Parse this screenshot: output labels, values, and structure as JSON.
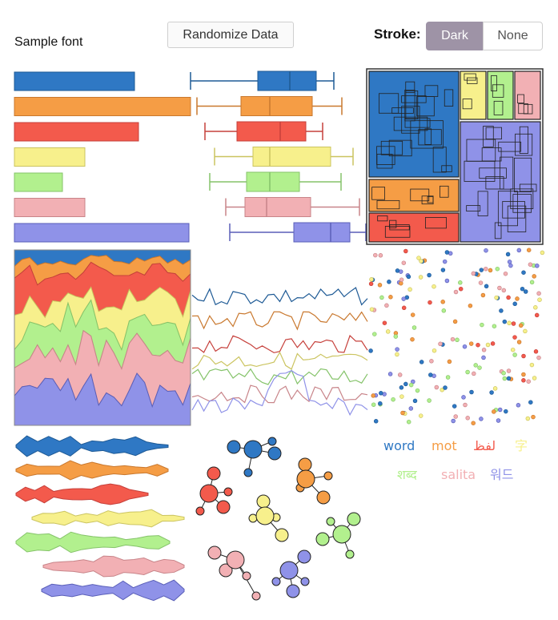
{
  "sample_font_label": "Sample font",
  "randomize_button_label": "Randomize Data",
  "stroke": {
    "label": "Stroke:",
    "options": [
      "Dark",
      "None"
    ],
    "selected": "Dark"
  },
  "palette": [
    "#2f78c4",
    "#f59d45",
    "#f35a4c",
    "#f7f08c",
    "#b2f08e",
    "#f2b0b4",
    "#8f92e8"
  ],
  "stroke_colors": [
    "#1e5a95",
    "#c9782e",
    "#c6403b",
    "#cbc460",
    "#85c36a",
    "#c88489",
    "#5a5fb8"
  ],
  "words": [
    {
      "text": "word",
      "color": "#2f78c4"
    },
    {
      "text": "mot",
      "color": "#f59d45"
    },
    {
      "text": "لفظ",
      "color": "#f35a4c"
    },
    {
      "text": "字",
      "color": "#f7f08c"
    },
    {
      "text": "शब्द",
      "color": "#b2f08e"
    },
    {
      "text": "salita",
      "color": "#f2b0b4"
    },
    {
      "text": "워드",
      "color": "#8f92e8"
    }
  ]
}
